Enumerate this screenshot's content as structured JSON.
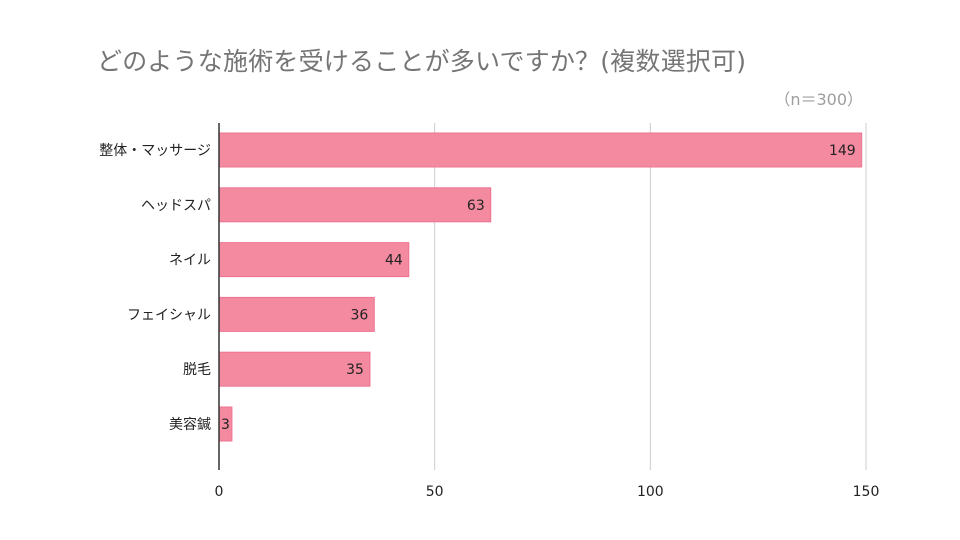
{
  "chart_data": {
    "type": "bar",
    "orientation": "horizontal",
    "title": "どのような施術を受けることが多いですか？(複数選択可)",
    "subtitle": "（n＝300）",
    "categories": [
      "整体・マッサージ",
      "ヘッドスパ",
      "ネイル",
      "フェイシャル",
      "脱毛",
      "美容鍼"
    ],
    "values": [
      149,
      63,
      44,
      36,
      35,
      3
    ],
    "data_labels": [
      "149",
      "63",
      "44",
      "36",
      "35",
      "3"
    ],
    "xlim": [
      0,
      150
    ],
    "xticks": [
      0,
      50,
      100,
      150
    ],
    "xtick_labels": [
      "0",
      "50",
      "100",
      "150"
    ],
    "grid": true,
    "legend": "none",
    "bar_color": "#f48aa0",
    "bar_edge_color": "#ee7491",
    "grid_color": "#cccccc",
    "axis_color": "#333333"
  }
}
